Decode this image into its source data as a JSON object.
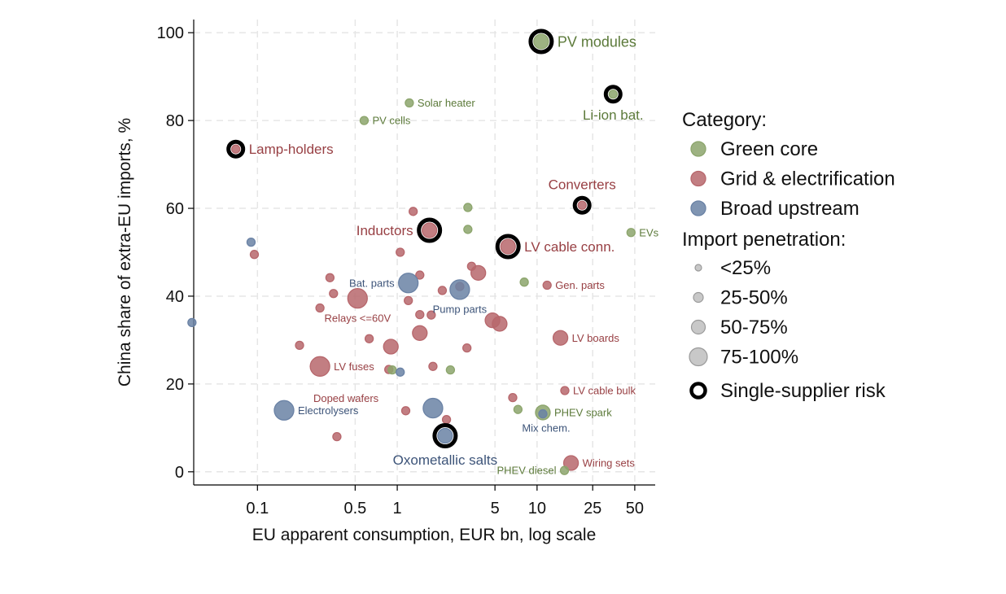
{
  "chart_data": {
    "type": "scatter",
    "xlabel": "EU apparent consumption, EUR bn, log scale",
    "ylabel": "China share of extra-EU imports, %",
    "x_scale": "log",
    "xlim": [
      0.035,
      70
    ],
    "ylim": [
      -3,
      103
    ],
    "x_ticks": [
      0.1,
      0.5,
      1,
      5,
      10,
      25,
      50
    ],
    "x_tick_labels": [
      "0.1",
      "0.5",
      "1",
      "5",
      "10",
      "25",
      "50"
    ],
    "y_ticks": [
      0,
      20,
      40,
      60,
      80,
      100
    ],
    "y_tick_labels": [
      "0",
      "20",
      "40",
      "60",
      "80",
      "100"
    ],
    "grid": true,
    "colors": {
      "green": "#8ca56c",
      "grid": "#b7676c",
      "upstream": "#6a82a5",
      "green_text": "#5c7a3a",
      "grid_text": "#984044",
      "upstream_text": "#3d5479",
      "gridline": "#e6e6e6",
      "risk_ring": "#000000"
    },
    "legend": {
      "position": "right",
      "category_title": "Category:",
      "categories": [
        {
          "label": "Green core",
          "cat": "green"
        },
        {
          "label": "Grid & electrification",
          "cat": "grid"
        },
        {
          "label": "Broad upstream",
          "cat": "upstream"
        }
      ],
      "penetration_title": "Import penetration:",
      "penetration": [
        {
          "label": "<25%",
          "size": 1
        },
        {
          "label": "25-50%",
          "size": 2
        },
        {
          "label": "50-75%",
          "size": 3
        },
        {
          "label": "75-100%",
          "size": 4
        }
      ],
      "risk_label": "Single-supplier risk"
    },
    "points": [
      {
        "x": 10.7,
        "y": 98,
        "cat": "green",
        "size": 2,
        "risk": true,
        "label": "PV modules",
        "label_pos": "right",
        "label_size": "large"
      },
      {
        "x": 35,
        "y": 86,
        "cat": "green",
        "size": 1,
        "risk": true,
        "label": "Li-ion bat.",
        "label_pos": "below",
        "label_size": "medium"
      },
      {
        "x": 1.22,
        "y": 84,
        "cat": "green",
        "size": 1,
        "label": "Solar heater",
        "label_pos": "right",
        "label_size": "small"
      },
      {
        "x": 0.58,
        "y": 80,
        "cat": "green",
        "size": 1,
        "label": "PV cells",
        "label_pos": "right",
        "label_size": "small"
      },
      {
        "x": 0.07,
        "y": 73.5,
        "cat": "grid",
        "size": 1,
        "risk": true,
        "label": "Lamp-holders",
        "label_pos": "right",
        "label_size": "medium"
      },
      {
        "x": 21,
        "y": 60.7,
        "cat": "grid",
        "size": 1,
        "risk": true,
        "label": "Converters",
        "label_pos": "above",
        "label_size": "medium"
      },
      {
        "x": 3.2,
        "y": 60.2,
        "cat": "green",
        "size": 1
      },
      {
        "x": 1.3,
        "y": 59.3,
        "cat": "grid",
        "size": 1
      },
      {
        "x": 3.2,
        "y": 55.2,
        "cat": "green",
        "size": 1
      },
      {
        "x": 47,
        "y": 54.5,
        "cat": "green",
        "size": 1,
        "label": "EVs",
        "label_pos": "right",
        "label_size": "small"
      },
      {
        "x": 1.7,
        "y": 55,
        "cat": "grid",
        "size": 2,
        "risk": true,
        "label": "Inductors",
        "label_pos": "left",
        "label_size": "medium"
      },
      {
        "x": 6.2,
        "y": 51.3,
        "cat": "grid",
        "size": 2,
        "risk": true,
        "label": "LV cable conn.",
        "label_pos": "right",
        "label_size": "medium"
      },
      {
        "x": 0.09,
        "y": 52.3,
        "cat": "upstream",
        "size": 1
      },
      {
        "x": 0.095,
        "y": 49.5,
        "cat": "grid",
        "size": 1
      },
      {
        "x": 1.05,
        "y": 50,
        "cat": "grid",
        "size": 1
      },
      {
        "x": 3.4,
        "y": 46.8,
        "cat": "grid",
        "size": 1
      },
      {
        "x": 3.8,
        "y": 45.3,
        "cat": "grid",
        "size": 2
      },
      {
        "x": 1.45,
        "y": 44.8,
        "cat": "grid",
        "size": 1
      },
      {
        "x": 0.33,
        "y": 44.2,
        "cat": "grid",
        "size": 1
      },
      {
        "x": 1.2,
        "y": 43,
        "cat": "upstream",
        "size": 3,
        "label": "Bat. parts",
        "label_pos": "left",
        "label_size": "small"
      },
      {
        "x": 8.1,
        "y": 43.2,
        "cat": "green",
        "size": 1
      },
      {
        "x": 11.8,
        "y": 42.5,
        "cat": "grid",
        "size": 1,
        "label": "Gen. parts",
        "label_pos": "right",
        "label_size": "small"
      },
      {
        "x": 2.8,
        "y": 42.2,
        "cat": "grid",
        "size": 1
      },
      {
        "x": 2.1,
        "y": 41.3,
        "cat": "grid",
        "size": 1
      },
      {
        "x": 2.8,
        "y": 41.5,
        "cat": "upstream",
        "size": 3,
        "label": "Pump parts",
        "label_pos": "below",
        "label_size": "small"
      },
      {
        "x": 0.35,
        "y": 40.6,
        "cat": "grid",
        "size": 1
      },
      {
        "x": 0.52,
        "y": 39.5,
        "cat": "grid",
        "size": 3,
        "label": "Relays <=60V",
        "label_pos": "below",
        "label_size": "small"
      },
      {
        "x": 1.2,
        "y": 39,
        "cat": "grid",
        "size": 1
      },
      {
        "x": 0.28,
        "y": 37.3,
        "cat": "grid",
        "size": 1
      },
      {
        "x": 1.45,
        "y": 35.8,
        "cat": "grid",
        "size": 1
      },
      {
        "x": 1.75,
        "y": 35.7,
        "cat": "grid",
        "size": 1
      },
      {
        "x": 4.8,
        "y": 34.5,
        "cat": "grid",
        "size": 2
      },
      {
        "x": 5.4,
        "y": 33.7,
        "cat": "grid",
        "size": 2
      },
      {
        "x": 1.45,
        "y": 31.6,
        "cat": "grid",
        "size": 2
      },
      {
        "x": 0.034,
        "y": 34,
        "cat": "upstream",
        "size": 1
      },
      {
        "x": 0.63,
        "y": 30.3,
        "cat": "grid",
        "size": 1
      },
      {
        "x": 14.7,
        "y": 30.5,
        "cat": "grid",
        "size": 2,
        "label": "LV boards",
        "label_pos": "right",
        "label_size": "small"
      },
      {
        "x": 0.2,
        "y": 28.8,
        "cat": "grid",
        "size": 1
      },
      {
        "x": 0.9,
        "y": 28.5,
        "cat": "grid",
        "size": 2
      },
      {
        "x": 3.15,
        "y": 28.2,
        "cat": "grid",
        "size": 1
      },
      {
        "x": 0.28,
        "y": 24,
        "cat": "grid",
        "size": 3,
        "label": "LV fuses",
        "label_pos": "right",
        "label_size": "small"
      },
      {
        "x": 0.87,
        "y": 23.3,
        "cat": "grid",
        "size": 1
      },
      {
        "x": 0.92,
        "y": 23.2,
        "cat": "green",
        "size": 1
      },
      {
        "x": 1.05,
        "y": 22.7,
        "cat": "upstream",
        "size": 1
      },
      {
        "x": 1.8,
        "y": 24,
        "cat": "grid",
        "size": 1
      },
      {
        "x": 2.4,
        "y": 23.2,
        "cat": "green",
        "size": 1
      },
      {
        "x": 15.8,
        "y": 18.5,
        "cat": "grid",
        "size": 1,
        "label": "LV cable bulk",
        "label_pos": "right",
        "label_size": "small"
      },
      {
        "x": 6.7,
        "y": 16.9,
        "cat": "grid",
        "size": 1,
        "label": "Doped wafers",
        "label_pos": "left",
        "label_size": "small",
        "label_dx": -235
      },
      {
        "x": 7.3,
        "y": 14.2,
        "cat": "green",
        "size": 1
      },
      {
        "x": 11,
        "y": 13.5,
        "cat": "green",
        "size": 2,
        "label": "PHEV spark",
        "label_pos": "right",
        "label_size": "small"
      },
      {
        "x": 11,
        "y": 13.2,
        "cat": "upstream",
        "size": 1,
        "label": "Mix chem.",
        "label_pos": "below-left",
        "label_size": "small"
      },
      {
        "x": 0.155,
        "y": 14,
        "cat": "upstream",
        "size": 3,
        "label": "Electrolysers",
        "label_pos": "right",
        "label_size": "small"
      },
      {
        "x": 1.8,
        "y": 14.5,
        "cat": "upstream",
        "size": 3
      },
      {
        "x": 1.15,
        "y": 13.9,
        "cat": "grid",
        "size": 1
      },
      {
        "x": 2.25,
        "y": 11.9,
        "cat": "grid",
        "size": 1
      },
      {
        "x": 0.37,
        "y": 8,
        "cat": "grid",
        "size": 1
      },
      {
        "x": 2.2,
        "y": 8.2,
        "cat": "upstream",
        "size": 2,
        "risk": true,
        "label": "Oxometallic salts",
        "label_pos": "below",
        "label_size": "medium"
      },
      {
        "x": 17.5,
        "y": 2,
        "cat": "grid",
        "size": 2,
        "label": "Wiring sets",
        "label_pos": "right",
        "label_size": "small"
      },
      {
        "x": 15.7,
        "y": 0.3,
        "cat": "green",
        "size": 1,
        "label": "PHEV diesel",
        "label_pos": "left",
        "label_size": "small"
      }
    ]
  }
}
